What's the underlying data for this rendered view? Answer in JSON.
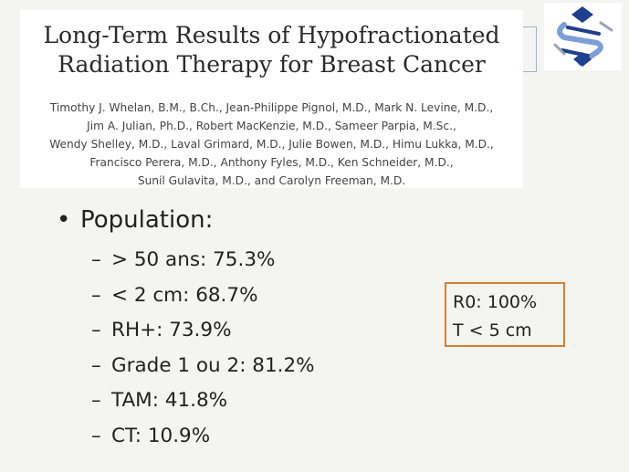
{
  "paper": {
    "title_lines": [
      "Long-Term Results of Hypofractionated",
      "Radiation Therapy for Breast Cancer"
    ],
    "author_lines": [
      "Timothy J. Whelan, B.M., B.Ch., Jean-Philippe Pignol, M.D., Mark N. Levine, M.D.,",
      "Jim A. Julian, Ph.D., Robert MacKenzie, M.D., Sameer Parpia, M.Sc.,",
      "Wendy Shelley, M.D., Laval Grimard, M.D., Julie Bowen, M.D., Himu Lukka, M.D.,",
      "Francisco Perera, M.D., Anthony Fyles, M.D., Ken Schneider, M.D.,",
      "Sunil Gulavita, M.D., and Carolyn Freeman, M.D."
    ]
  },
  "logo": {
    "icon": "society-logo-icon",
    "colors": {
      "blue": "#1f3f8f",
      "light_blue": "#7c9fd6",
      "grey": "#9aa3b5"
    }
  },
  "content": {
    "bullet_symbol": "•",
    "dash_symbol": "–",
    "heading": "Population:",
    "items": [
      "> 50 ans: 75.3%",
      "< 2 cm: 68.7%",
      "RH+: 73.9%",
      "Grade 1 ou 2: 81.2%",
      "TAM: 41.8%",
      "CT: 10.9%"
    ]
  },
  "note": {
    "lines": [
      "R0: 100%",
      "T < 5 cm"
    ],
    "border_color": "#e07c2e"
  }
}
